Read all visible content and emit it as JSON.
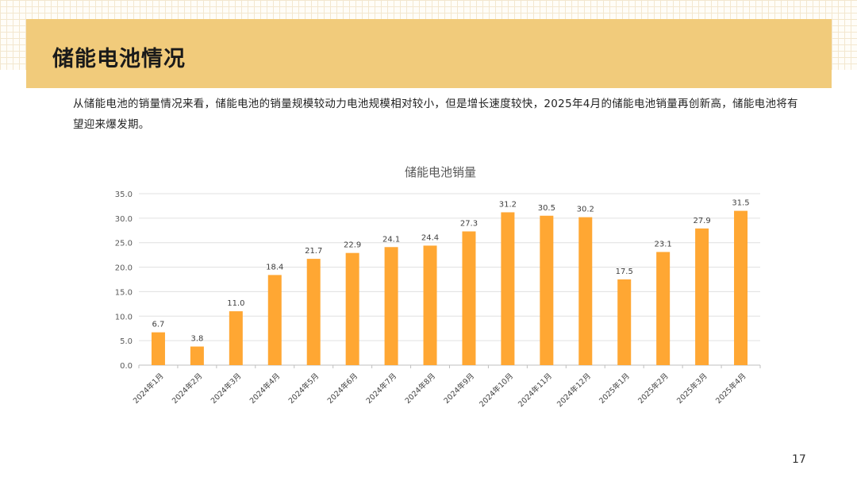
{
  "header": {
    "title": "储能电池情况"
  },
  "description": "从储能电池的销量情况来看，储能电池的销量规模较动力电池规模相对较小，但是增长速度较快，2025年4月的储能电池销量再创新高，储能电池将有望迎来爆发期。",
  "page_number": "17",
  "colors": {
    "bar": "#ffa733",
    "band": "#f1cb7b",
    "grid": "#e0e0e0"
  },
  "chart_data": {
    "type": "bar",
    "title": "储能电池销量",
    "categories": [
      "2024年1月",
      "2024年2月",
      "2024年3月",
      "2024年4月",
      "2024年5月",
      "2024年6月",
      "2024年7月",
      "2024年8月",
      "2024年9月",
      "2024年10月",
      "2024年11月",
      "2024年12月",
      "2025年1月",
      "2025年2月",
      "2025年3月",
      "2025年4月"
    ],
    "values": [
      6.7,
      3.8,
      11.0,
      18.4,
      21.7,
      22.9,
      24.1,
      24.4,
      27.3,
      31.2,
      30.5,
      30.2,
      17.5,
      23.1,
      27.9,
      31.5
    ],
    "data_labels": [
      "6.7",
      "3.8",
      "11.0",
      "18.4",
      "21.7",
      "22.9",
      "24.1",
      "24.4",
      "27.3",
      "31.2",
      "30.5",
      "30.2",
      "17.5",
      "23.1",
      "27.9",
      "31.5"
    ],
    "yticks": [
      "0.0",
      "5.0",
      "10.0",
      "15.0",
      "20.0",
      "25.0",
      "30.0",
      "35.0"
    ],
    "ylim": [
      0,
      35
    ],
    "grid": true,
    "legend": "none"
  }
}
